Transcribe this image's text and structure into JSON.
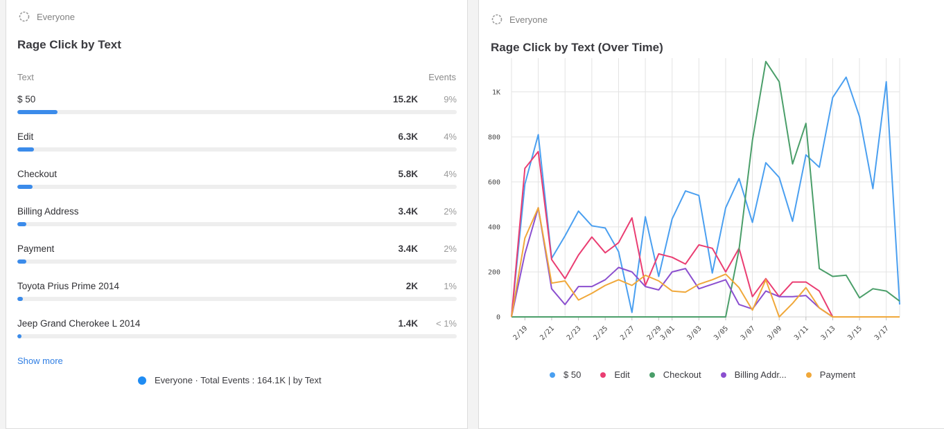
{
  "left": {
    "segment": "Everyone",
    "title": "Rage Click by Text",
    "col_text": "Text",
    "col_events": "Events",
    "rows": [
      {
        "label": "$ 50",
        "count": "15.2K",
        "pct": "9%",
        "fraction": 0.092
      },
      {
        "label": "Edit",
        "count": "6.3K",
        "pct": "4%",
        "fraction": 0.038
      },
      {
        "label": "Checkout",
        "count": "5.8K",
        "pct": "4%",
        "fraction": 0.035
      },
      {
        "label": "Billing Address",
        "count": "3.4K",
        "pct": "2%",
        "fraction": 0.021
      },
      {
        "label": "Payment",
        "count": "3.4K",
        "pct": "2%",
        "fraction": 0.021
      },
      {
        "label": "Toyota Prius Prime 2014",
        "count": "2K",
        "pct": "1%",
        "fraction": 0.012
      },
      {
        "label": "Jeep Grand Cherokee L 2014",
        "count": "1.4K",
        "pct": "< 1%",
        "fraction": 0.008
      }
    ],
    "show_more": "Show more",
    "footer": "Everyone · Total Events : 164.1K | by Text"
  },
  "right": {
    "segment": "Everyone",
    "title": "Rage Click by Text (Over Time)"
  },
  "chart_data": {
    "type": "line",
    "title": "Rage Click by Text (Over Time)",
    "xlabel": "",
    "ylabel": "",
    "ylim": [
      0,
      1150
    ],
    "yticks": [
      0,
      200,
      400,
      600,
      800,
      1000
    ],
    "ytick_labels": [
      "0",
      "200",
      "400",
      "600",
      "800",
      "1K"
    ],
    "x": [
      "2/18",
      "2/19",
      "2/20",
      "2/21",
      "2/22",
      "2/23",
      "2/24",
      "2/25",
      "2/26",
      "2/27",
      "2/28",
      "2/29",
      "3/01",
      "3/02",
      "3/03",
      "3/04",
      "3/05",
      "3/06",
      "3/07",
      "3/08",
      "3/09",
      "3/10",
      "3/11",
      "3/12",
      "3/13",
      "3/14",
      "3/15",
      "3/16",
      "3/17",
      "3/18"
    ],
    "x_tick_labels": [
      "2/19",
      "2/21",
      "2/23",
      "2/25",
      "2/27",
      "2/29",
      "3/01",
      "3/03",
      "3/05",
      "3/07",
      "3/09",
      "3/11",
      "3/13",
      "3/15",
      "3/17"
    ],
    "x_tick_index": [
      1,
      3,
      5,
      7,
      9,
      11,
      12,
      14,
      16,
      18,
      20,
      22,
      24,
      26,
      28
    ],
    "series": [
      {
        "name": "$ 50",
        "color": "#4a9ff0",
        "values": [
          0,
          590,
          810,
          260,
          360,
          470,
          405,
          395,
          290,
          20,
          445,
          180,
          435,
          560,
          540,
          195,
          485,
          615,
          420,
          685,
          620,
          425,
          720,
          665,
          975,
          1065,
          890,
          570,
          1045,
          55
        ]
      },
      {
        "name": "Edit",
        "color": "#ea3d72",
        "values": [
          0,
          660,
          735,
          255,
          170,
          275,
          355,
          285,
          330,
          440,
          140,
          280,
          265,
          235,
          320,
          305,
          200,
          305,
          90,
          170,
          90,
          155,
          155,
          115,
          0,
          0,
          0,
          0,
          0,
          0
        ]
      },
      {
        "name": "Checkout",
        "color": "#4a9e69",
        "values": [
          0,
          0,
          0,
          0,
          0,
          0,
          0,
          0,
          0,
          0,
          0,
          0,
          0,
          0,
          0,
          0,
          0,
          300,
          785,
          1135,
          1045,
          680,
          860,
          215,
          180,
          185,
          85,
          125,
          115,
          70
        ]
      },
      {
        "name": "Billing Addr...",
        "color": "#8b4fcf",
        "values": [
          0,
          280,
          485,
          125,
          55,
          135,
          135,
          165,
          220,
          200,
          135,
          120,
          200,
          215,
          125,
          145,
          165,
          55,
          35,
          115,
          90,
          90,
          95,
          40,
          0,
          0,
          0,
          0,
          0,
          0
        ]
      },
      {
        "name": "Payment",
        "color": "#f0a83a",
        "values": [
          0,
          350,
          485,
          150,
          160,
          75,
          105,
          140,
          165,
          140,
          185,
          160,
          115,
          110,
          145,
          165,
          190,
          130,
          30,
          165,
          0,
          60,
          130,
          40,
          0,
          0,
          0,
          0,
          0,
          0
        ]
      }
    ]
  }
}
